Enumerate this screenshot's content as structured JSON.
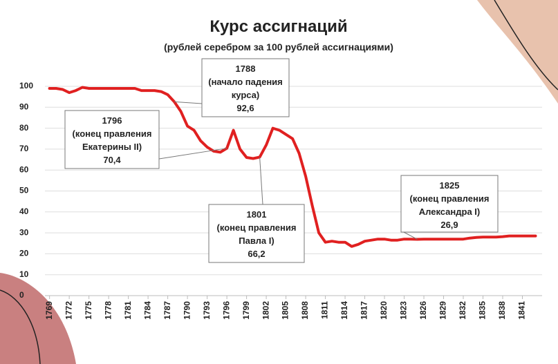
{
  "chart_data": {
    "type": "line",
    "title": "Курс ассигнаций",
    "subtitle": "(рублей серебром за 100 рублей ассигнациями)",
    "x": [
      1769,
      1770,
      1771,
      1772,
      1773,
      1774,
      1775,
      1776,
      1777,
      1778,
      1779,
      1780,
      1781,
      1782,
      1783,
      1784,
      1785,
      1786,
      1787,
      1788,
      1789,
      1790,
      1791,
      1792,
      1793,
      1794,
      1795,
      1796,
      1797,
      1798,
      1799,
      1800,
      1801,
      1802,
      1803,
      1804,
      1805,
      1806,
      1807,
      1808,
      1809,
      1810,
      1811,
      1812,
      1813,
      1814,
      1815,
      1816,
      1817,
      1818,
      1819,
      1820,
      1821,
      1822,
      1823,
      1824,
      1825,
      1826,
      1827,
      1828,
      1829,
      1830,
      1831,
      1832,
      1833,
      1834,
      1835,
      1836,
      1837,
      1838,
      1839,
      1840,
      1841,
      1842,
      1843
    ],
    "series": [
      {
        "color": "#e02020",
        "values": [
          99,
          99,
          98.5,
          97,
          98,
          99.5,
          99,
          99,
          99,
          99,
          99,
          99,
          99,
          99,
          98,
          98,
          98,
          97.5,
          96,
          92.6,
          88,
          81,
          79,
          74,
          71,
          69,
          68.5,
          70.4,
          79,
          70,
          66,
          65.5,
          66.2,
          72,
          80,
          79,
          77,
          75,
          68,
          57,
          43,
          30,
          25.5,
          26,
          25.5,
          25.5,
          23.5,
          24.5,
          26,
          26.5,
          27,
          27,
          26.5,
          26.5,
          27,
          27,
          26.9,
          27,
          27,
          27,
          27,
          27,
          27,
          27,
          27.5,
          27.8,
          28,
          28,
          28,
          28.2,
          28.5,
          28.5,
          28.5,
          28.5,
          28.5
        ]
      }
    ],
    "xlim": [
      1768.3,
      1844
    ],
    "xticks": [
      1769,
      1772,
      1775,
      1778,
      1781,
      1784,
      1787,
      1790,
      1793,
      1796,
      1799,
      1802,
      1805,
      1808,
      1811,
      1814,
      1817,
      1820,
      1823,
      1826,
      1829,
      1832,
      1835,
      1838,
      1841
    ],
    "ylim": [
      0,
      100
    ],
    "yticks": [
      0,
      10,
      20,
      30,
      40,
      50,
      60,
      70,
      80,
      90,
      100
    ],
    "grid": true,
    "annotations": [
      {
        "x": 1788,
        "y": 92.6,
        "lines": [
          "1788",
          "(начало падения",
          "курса)",
          "92,6"
        ]
      },
      {
        "x": 1796,
        "y": 70.4,
        "lines": [
          "1796",
          "(конец правления",
          "Екатерины II)",
          "70,4"
        ]
      },
      {
        "x": 1801,
        "y": 66.2,
        "lines": [
          "1801",
          "(конец правления",
          "Павла I)",
          "66,2"
        ]
      },
      {
        "x": 1825,
        "y": 26.9,
        "lines": [
          "1825",
          "(конец правления",
          "Александра I)",
          "26,9"
        ]
      }
    ]
  }
}
